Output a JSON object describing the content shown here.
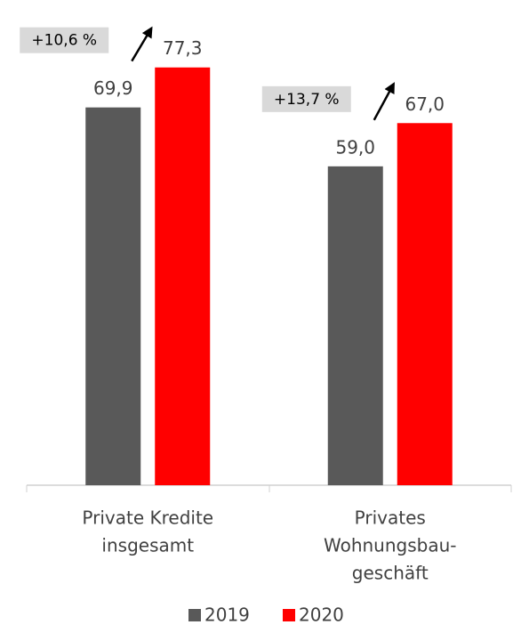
{
  "chart_data": {
    "type": "bar",
    "categories": [
      [
        "Private Kredite",
        "insgesamt"
      ],
      [
        "Privates",
        "Wohnungsbau-",
        "geschäft"
      ]
    ],
    "series": [
      {
        "name": "2019",
        "color": "#595959",
        "values": [
          69.9,
          59.0
        ],
        "value_labels": [
          "69,9",
          "59,0"
        ]
      },
      {
        "name": "2020",
        "color": "#ff0000",
        "values": [
          77.3,
          67.0
        ],
        "value_labels": [
          "77,3",
          "67,0"
        ]
      }
    ],
    "annotations": [
      "+10,6 %",
      "+13,7 %"
    ],
    "ylim": [
      0,
      85
    ],
    "legend": "bottom"
  }
}
